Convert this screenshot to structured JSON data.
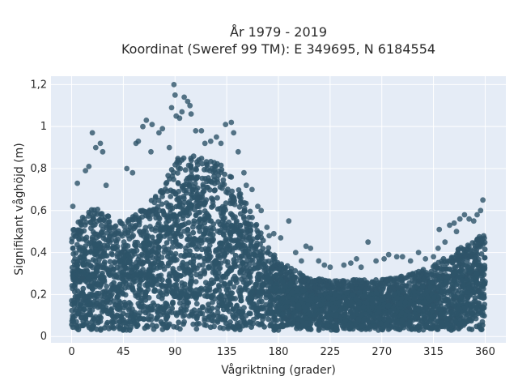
{
  "chart_data": {
    "type": "scatter",
    "title_line1": "År 1979 - 2019",
    "title_line2": "Koordinat (Sweref 99 TM): E 349695, N 6184554",
    "xlabel": "Vågriktning (grader)",
    "ylabel": "Signifikant våghöjd (m)",
    "xlim": [
      -18,
      378
    ],
    "ylim": [
      -0.03,
      1.24
    ],
    "x_ticks": [
      0,
      45,
      90,
      135,
      180,
      225,
      270,
      315,
      360
    ],
    "x_tick_labels": [
      "0",
      "45",
      "90",
      "135",
      "180",
      "225",
      "270",
      "315",
      "360"
    ],
    "y_ticks": [
      0,
      0.2,
      0.4,
      0.6,
      0.8,
      1.0,
      1.2
    ],
    "y_tick_labels": [
      "0",
      "0,2",
      "0,4",
      "0,6",
      "0,8",
      "1",
      "1,2"
    ],
    "grid": true,
    "colors": {
      "marker": "#2e5469",
      "plot_bg": "#e5ecf6",
      "grid": "#ffffff"
    },
    "envelope": {
      "direction": [
        0,
        10,
        20,
        30,
        40,
        50,
        60,
        70,
        80,
        90,
        100,
        110,
        120,
        130,
        140,
        150,
        160,
        170,
        180,
        190,
        200,
        210,
        220,
        230,
        240,
        250,
        260,
        270,
        280,
        290,
        300,
        310,
        320,
        330,
        340,
        350,
        360
      ],
      "dense_max_height": [
        0.5,
        0.58,
        0.62,
        0.58,
        0.55,
        0.56,
        0.6,
        0.66,
        0.72,
        0.84,
        0.88,
        0.86,
        0.84,
        0.82,
        0.76,
        0.66,
        0.55,
        0.44,
        0.37,
        0.33,
        0.3,
        0.28,
        0.27,
        0.27,
        0.27,
        0.27,
        0.27,
        0.27,
        0.28,
        0.29,
        0.31,
        0.33,
        0.36,
        0.39,
        0.43,
        0.46,
        0.5
      ],
      "min_height": 0.03
    },
    "outliers": [
      {
        "x": 1,
        "y": 0.62
      },
      {
        "x": 5,
        "y": 0.73
      },
      {
        "x": 12,
        "y": 0.79
      },
      {
        "x": 15,
        "y": 0.81
      },
      {
        "x": 18,
        "y": 0.97
      },
      {
        "x": 21,
        "y": 0.9
      },
      {
        "x": 25,
        "y": 0.92
      },
      {
        "x": 27,
        "y": 0.88
      },
      {
        "x": 30,
        "y": 0.72
      },
      {
        "x": 48,
        "y": 0.8
      },
      {
        "x": 53,
        "y": 0.78
      },
      {
        "x": 56,
        "y": 0.92
      },
      {
        "x": 58,
        "y": 0.93
      },
      {
        "x": 62,
        "y": 1.0
      },
      {
        "x": 65,
        "y": 1.03
      },
      {
        "x": 69,
        "y": 0.88
      },
      {
        "x": 70,
        "y": 1.01
      },
      {
        "x": 76,
        "y": 0.97
      },
      {
        "x": 79,
        "y": 0.99
      },
      {
        "x": 85,
        "y": 0.9
      },
      {
        "x": 87,
        "y": 1.09
      },
      {
        "x": 89,
        "y": 1.2
      },
      {
        "x": 90,
        "y": 1.15
      },
      {
        "x": 91,
        "y": 1.05
      },
      {
        "x": 94,
        "y": 1.04
      },
      {
        "x": 96,
        "y": 1.07
      },
      {
        "x": 98,
        "y": 1.14
      },
      {
        "x": 101,
        "y": 1.12
      },
      {
        "x": 103,
        "y": 1.1
      },
      {
        "x": 104,
        "y": 1.06
      },
      {
        "x": 108,
        "y": 0.98
      },
      {
        "x": 113,
        "y": 0.98
      },
      {
        "x": 116,
        "y": 0.92
      },
      {
        "x": 121,
        "y": 0.93
      },
      {
        "x": 126,
        "y": 0.95
      },
      {
        "x": 130,
        "y": 0.92
      },
      {
        "x": 134,
        "y": 1.01
      },
      {
        "x": 139,
        "y": 1.02
      },
      {
        "x": 141,
        "y": 0.97
      },
      {
        "x": 145,
        "y": 0.88
      },
      {
        "x": 150,
        "y": 0.78
      },
      {
        "x": 152,
        "y": 0.72
      },
      {
        "x": 157,
        "y": 0.7
      },
      {
        "x": 162,
        "y": 0.62
      },
      {
        "x": 165,
        "y": 0.6
      },
      {
        "x": 170,
        "y": 0.52
      },
      {
        "x": 172,
        "y": 0.48
      },
      {
        "x": 176,
        "y": 0.49
      },
      {
        "x": 182,
        "y": 0.47
      },
      {
        "x": 189,
        "y": 0.55
      },
      {
        "x": 195,
        "y": 0.4
      },
      {
        "x": 200,
        "y": 0.36
      },
      {
        "x": 204,
        "y": 0.43
      },
      {
        "x": 208,
        "y": 0.42
      },
      {
        "x": 215,
        "y": 0.36
      },
      {
        "x": 220,
        "y": 0.34
      },
      {
        "x": 225,
        "y": 0.33
      },
      {
        "x": 237,
        "y": 0.34
      },
      {
        "x": 243,
        "y": 0.35
      },
      {
        "x": 248,
        "y": 0.37
      },
      {
        "x": 252,
        "y": 0.33
      },
      {
        "x": 258,
        "y": 0.45
      },
      {
        "x": 265,
        "y": 0.36
      },
      {
        "x": 272,
        "y": 0.37
      },
      {
        "x": 276,
        "y": 0.39
      },
      {
        "x": 283,
        "y": 0.38
      },
      {
        "x": 288,
        "y": 0.38
      },
      {
        "x": 295,
        "y": 0.36
      },
      {
        "x": 302,
        "y": 0.4
      },
      {
        "x": 308,
        "y": 0.37
      },
      {
        "x": 315,
        "y": 0.38
      },
      {
        "x": 319,
        "y": 0.42
      },
      {
        "x": 320,
        "y": 0.51
      },
      {
        "x": 325,
        "y": 0.45
      },
      {
        "x": 329,
        "y": 0.53
      },
      {
        "x": 333,
        "y": 0.54
      },
      {
        "x": 335,
        "y": 0.5
      },
      {
        "x": 338,
        "y": 0.56
      },
      {
        "x": 342,
        "y": 0.58
      },
      {
        "x": 346,
        "y": 0.56
      },
      {
        "x": 350,
        "y": 0.55
      },
      {
        "x": 353,
        "y": 0.58
      },
      {
        "x": 356,
        "y": 0.6
      },
      {
        "x": 358,
        "y": 0.65
      }
    ]
  }
}
